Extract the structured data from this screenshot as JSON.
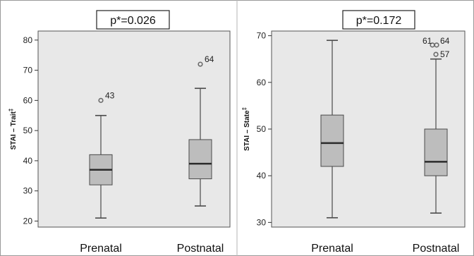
{
  "chart_data": [
    {
      "type": "box",
      "title": "p*=0.026",
      "ylabel": "STAI – Trait",
      "ylabel_mark": "‡",
      "categories": [
        "Prenatal",
        "Postnatal"
      ],
      "ylim": [
        18,
        83
      ],
      "yticks": [
        20,
        30,
        40,
        50,
        60,
        70,
        80
      ],
      "grid": false,
      "boxes": [
        {
          "category": "Prenatal",
          "min": 21,
          "q1": 32,
          "median": 37,
          "q3": 42,
          "max": 55,
          "outliers": [
            {
              "value": 60,
              "label": "43"
            }
          ]
        },
        {
          "category": "Postnatal",
          "min": 25,
          "q1": 34,
          "median": 39,
          "q3": 47,
          "max": 64,
          "outliers": [
            {
              "value": 72,
              "label": "64"
            }
          ]
        }
      ]
    },
    {
      "type": "box",
      "title": "p*=0.172",
      "ylabel": "STAI – State",
      "ylabel_mark": "‡",
      "categories": [
        "Prenatal",
        "Postnatal"
      ],
      "ylim": [
        29,
        71
      ],
      "yticks": [
        30,
        40,
        50,
        60,
        70
      ],
      "grid": false,
      "boxes": [
        {
          "category": "Prenatal",
          "min": 31,
          "q1": 42,
          "median": 47,
          "q3": 53,
          "max": 69,
          "outliers": []
        },
        {
          "category": "Postnatal",
          "min": 32,
          "q1": 40,
          "median": 43,
          "q3": 50,
          "max": 65,
          "outliers": [
            {
              "value": 68,
              "label": "61"
            },
            {
              "value": 68,
              "label": "64"
            },
            {
              "value": 66,
              "label": "57"
            }
          ]
        }
      ]
    }
  ]
}
